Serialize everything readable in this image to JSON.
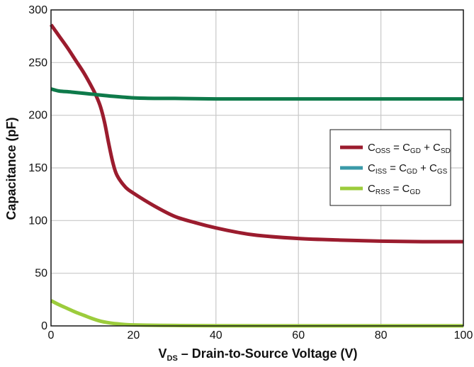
{
  "chart_data": {
    "type": "line",
    "xlabel": "V_DS – Drain-to-Source Voltage (V)",
    "xlabel_parts": {
      "main": "V",
      "sub": "DS",
      "rest": " – Drain-to-Source Voltage (V)"
    },
    "ylabel": "Capacitance (pF)",
    "xlim": [
      0,
      100
    ],
    "ylim": [
      0,
      300
    ],
    "x_ticks": [
      0,
      20,
      40,
      60,
      80,
      100
    ],
    "y_ticks": [
      0,
      50,
      100,
      150,
      200,
      250,
      300
    ],
    "grid": true,
    "legend_position": "right",
    "series": [
      {
        "name": "C_OSS = C_GD + C_SD",
        "legend": [
          [
            "C",
            "OSS"
          ],
          [
            " = ",
            ""
          ],
          [
            "C",
            "GD"
          ],
          [
            " + ",
            ""
          ],
          [
            "C",
            "SD"
          ]
        ],
        "color": "#9b1c2e",
        "x": [
          0,
          2,
          4,
          6,
          8,
          10,
          11,
          12,
          13,
          14,
          15,
          16,
          18,
          20,
          25,
          30,
          35,
          40,
          45,
          50,
          60,
          70,
          80,
          90,
          100
        ],
        "y": [
          286,
          275,
          264,
          252,
          240,
          226,
          218,
          208,
          193,
          173,
          155,
          143,
          132,
          126,
          114,
          104,
          98,
          93,
          89,
          86,
          83,
          81.5,
          80.5,
          80,
          80
        ]
      },
      {
        "name": "C_ISS = C_GD + C_GS",
        "legend": [
          [
            "C",
            "ISS"
          ],
          [
            " = ",
            ""
          ],
          [
            "C",
            "GD"
          ],
          [
            " + ",
            ""
          ],
          [
            "C",
            "GS"
          ]
        ],
        "color": "#0e7a4a",
        "legend_color": "#3a9aa8",
        "x": [
          0,
          2,
          5,
          10,
          15,
          20,
          25,
          30,
          40,
          50,
          60,
          70,
          80,
          90,
          100
        ],
        "y": [
          225,
          223,
          222,
          220,
          218,
          216.5,
          216,
          216,
          215.5,
          215.5,
          215.5,
          215.5,
          215.5,
          215.5,
          215.5
        ]
      },
      {
        "name": "C_RSS = C_GD",
        "legend": [
          [
            "C",
            "RSS"
          ],
          [
            " = ",
            ""
          ],
          [
            "C",
            "GD"
          ]
        ],
        "color": "#9ccc3c",
        "x": [
          0,
          2,
          4,
          6,
          8,
          10,
          12,
          14,
          16,
          18,
          20,
          25,
          30,
          40,
          60,
          80,
          100
        ],
        "y": [
          24,
          20,
          16.5,
          13,
          10,
          7,
          4.5,
          3,
          2,
          1.3,
          0.9,
          0.6,
          0.4,
          0.2,
          0.1,
          0.1,
          0.1
        ]
      }
    ]
  }
}
